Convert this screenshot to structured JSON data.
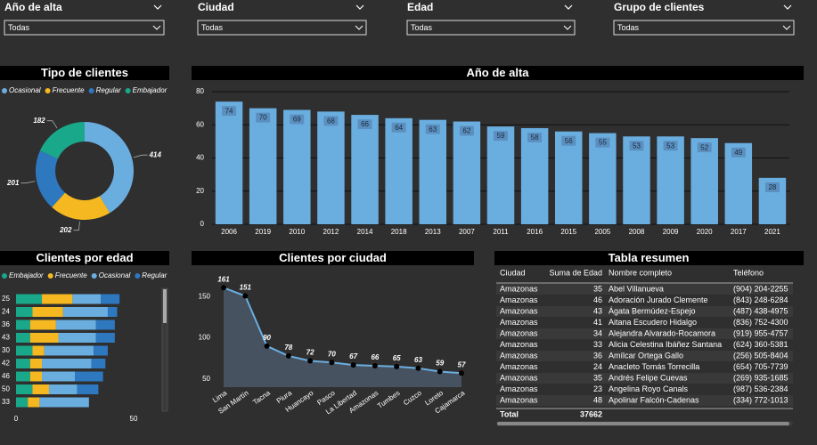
{
  "filters": [
    {
      "label": "Año de alta",
      "value": "Todas"
    },
    {
      "label": "Ciudad",
      "value": "Todas"
    },
    {
      "label": "Edad",
      "value": "Todas"
    },
    {
      "label": "Grupo de clientes",
      "value": "Todas"
    }
  ],
  "chart_data": [
    {
      "type": "pie",
      "title": "Tipo de clientes",
      "donut": true,
      "categories": [
        "Ocasional",
        "Frecuente",
        "Regular",
        "Embajador"
      ],
      "values": [
        414,
        202,
        201,
        182
      ],
      "colors": [
        "#6aaee0",
        "#f5b820",
        "#2e78c0",
        "#1aa88a"
      ]
    },
    {
      "type": "bar",
      "title": "Año de alta",
      "categories": [
        "2006",
        "2019",
        "2010",
        "2012",
        "2014",
        "2018",
        "2013",
        "2007",
        "2011",
        "2016",
        "2015",
        "2005",
        "2008",
        "2009",
        "2020",
        "2017",
        "2021"
      ],
      "values": [
        74,
        70,
        69,
        68,
        66,
        64,
        63,
        62,
        59,
        58,
        56,
        55,
        53,
        53,
        52,
        49,
        28
      ],
      "color": "#6aaee0",
      "ylim": [
        0,
        80
      ],
      "yticks": [
        0,
        20,
        40,
        60,
        80
      ],
      "grid": true
    },
    {
      "type": "stacked_hbar",
      "title": "Clientes por edad",
      "categories": [
        "25",
        "24",
        "36",
        "43",
        "30",
        "42",
        "46",
        "50",
        "33"
      ],
      "series": [
        {
          "name": "Embajador",
          "color": "#1aa88a",
          "values": [
            11,
            7,
            6,
            6,
            7,
            6,
            6,
            7,
            5
          ]
        },
        {
          "name": "Frecuente",
          "color": "#f5b820",
          "values": [
            13,
            13,
            11,
            12,
            5,
            5,
            5,
            7,
            5
          ]
        },
        {
          "name": "Ocasional",
          "color": "#6aaee0",
          "values": [
            12,
            19,
            17,
            16,
            21,
            21,
            14,
            12,
            21
          ]
        },
        {
          "name": "Regular",
          "color": "#2e78c0",
          "values": [
            8,
            4,
            8,
            8,
            6,
            6,
            12,
            9,
            0
          ]
        }
      ],
      "xlim": [
        0,
        50
      ],
      "xticks": [
        0,
        50
      ]
    },
    {
      "type": "line",
      "title": "Clientes por ciudad",
      "area": true,
      "categories": [
        "Lima",
        "San Martín",
        "Tacna",
        "Piura",
        "Huancayo",
        "Pasco",
        "La Libertad",
        "Amazonas",
        "Tumbes",
        "Cuzco",
        "Loreto",
        "Cajamarca"
      ],
      "values": [
        161,
        151,
        90,
        78,
        72,
        70,
        67,
        66,
        65,
        63,
        59,
        57
      ],
      "color": "#6aaee0",
      "ylim": [
        40,
        170
      ],
      "yticks": [
        50,
        100,
        150
      ]
    }
  ],
  "table": {
    "title": "Tabla resumen",
    "columns": [
      "Ciudad",
      "Suma de Edad",
      "Nombre completo",
      "Teléfono"
    ],
    "rows": [
      [
        "Amazonas",
        35,
        "Abel Villanueva",
        "(904) 204-2255"
      ],
      [
        "Amazonas",
        46,
        "Adoración Jurado Clemente",
        "(843) 248-6284"
      ],
      [
        "Amazonas",
        43,
        "Ágata Bermúdez-Espejo",
        "(487) 438-4975"
      ],
      [
        "Amazonas",
        41,
        "Aitana Escudero Hidalgo",
        "(836) 752-4300"
      ],
      [
        "Amazonas",
        34,
        "Alejandra Alvarado-Rocamora",
        "(919) 955-4757"
      ],
      [
        "Amazonas",
        33,
        "Alicia Celestina Ibáñez Santana",
        "(624) 360-5381"
      ],
      [
        "Amazonas",
        36,
        "Amílcar Ortega Gallo",
        "(256) 505-8404"
      ],
      [
        "Amazonas",
        24,
        "Anacleto Tomás Torrecilla",
        "(654) 705-7739"
      ],
      [
        "Amazonas",
        35,
        "Andrés Felipe Cuevas",
        "(269) 935-1685"
      ],
      [
        "Amazonas",
        23,
        "Angelina Royo Canals",
        "(987) 536-2384"
      ],
      [
        "Amazonas",
        48,
        "Apolinar Falcón-Cadenas",
        "(334) 772-1013"
      ]
    ],
    "total": [
      "Total",
      37662
    ]
  }
}
